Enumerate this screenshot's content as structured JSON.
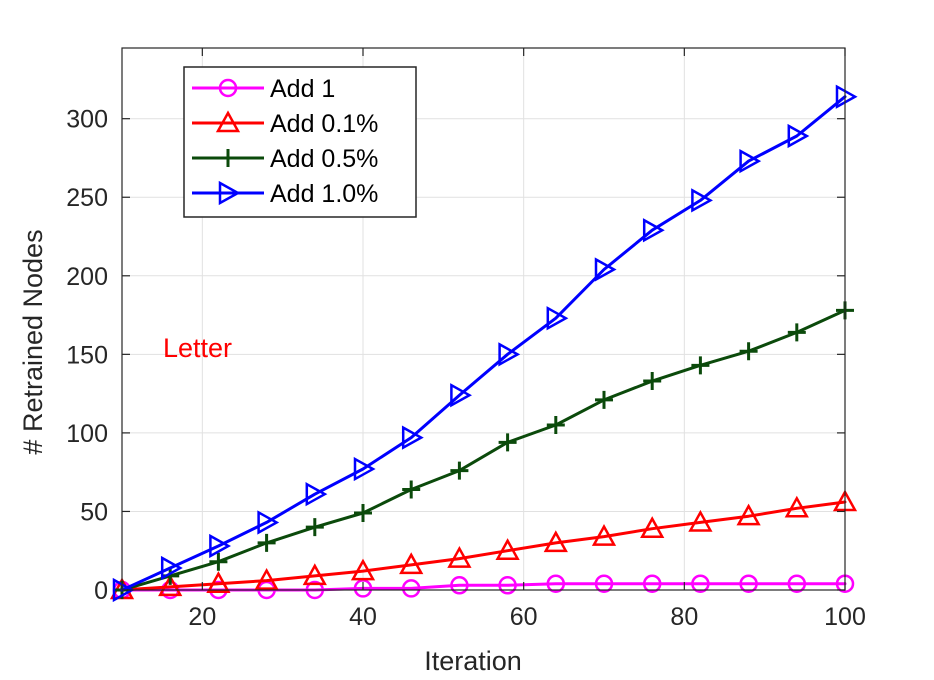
{
  "chart_data": {
    "type": "line",
    "title": "",
    "xlabel": "Iteration",
    "ylabel": "# Retrained Nodes",
    "xlim": [
      10,
      100
    ],
    "ylim": [
      0,
      345
    ],
    "xticks": [
      20,
      40,
      60,
      80,
      100
    ],
    "yticks": [
      0,
      50,
      100,
      150,
      200,
      250,
      300
    ],
    "grid": true,
    "legend_position": "top-left",
    "annotation": {
      "text": "Letter",
      "color": "#ff0000"
    },
    "x": [
      10,
      16,
      22,
      28,
      34,
      40,
      46,
      52,
      58,
      64,
      70,
      76,
      82,
      88,
      94,
      100
    ],
    "series": [
      {
        "name": "Add 1",
        "color": "#ff00ff",
        "marker": "circle",
        "values": [
          0,
          0,
          0,
          0,
          0,
          1,
          1,
          3,
          3,
          4,
          4,
          4,
          4,
          4,
          4,
          4
        ]
      },
      {
        "name": "Add 0.1%",
        "color": "#ff0000",
        "marker": "triangle-up",
        "values": [
          0,
          2,
          4,
          6,
          9,
          12,
          16,
          20,
          25,
          30,
          34,
          39,
          43,
          47,
          52,
          56
        ]
      },
      {
        "name": "Add 0.5%",
        "color": "#0b4a0b",
        "marker": "plus",
        "values": [
          0,
          9,
          18,
          30,
          40,
          49,
          64,
          76,
          94,
          105,
          121,
          133,
          143,
          152,
          164,
          178
        ]
      },
      {
        "name": "Add 1.0%",
        "color": "#0000ff",
        "marker": "triangle-right",
        "values": [
          0,
          14,
          28,
          43,
          61,
          77,
          97,
          124,
          150,
          173,
          204,
          229,
          248,
          273,
          289,
          314
        ]
      }
    ]
  }
}
